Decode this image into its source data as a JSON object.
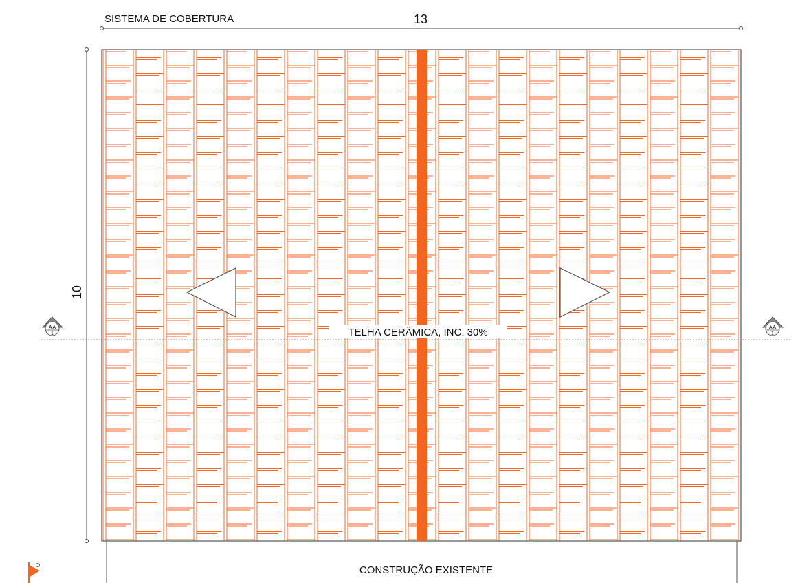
{
  "header": {
    "system_label": "SISTEMA DE COBERTURA"
  },
  "dimensions": {
    "width_value": "13",
    "height_value": "10"
  },
  "roof": {
    "material_label": "TELHA CERÂMICA, INC. 30%",
    "slope_directions": [
      "left",
      "right"
    ]
  },
  "section_markers": [
    {
      "code": "AA",
      "sheet": "1"
    },
    {
      "code": "AA",
      "sheet": "1"
    }
  ],
  "existing_building": {
    "label": "CONSTRUÇÃO EXISTENTE"
  },
  "colors": {
    "tile": "#f26a2a",
    "ridge": "#f26522",
    "line": "#444444"
  }
}
